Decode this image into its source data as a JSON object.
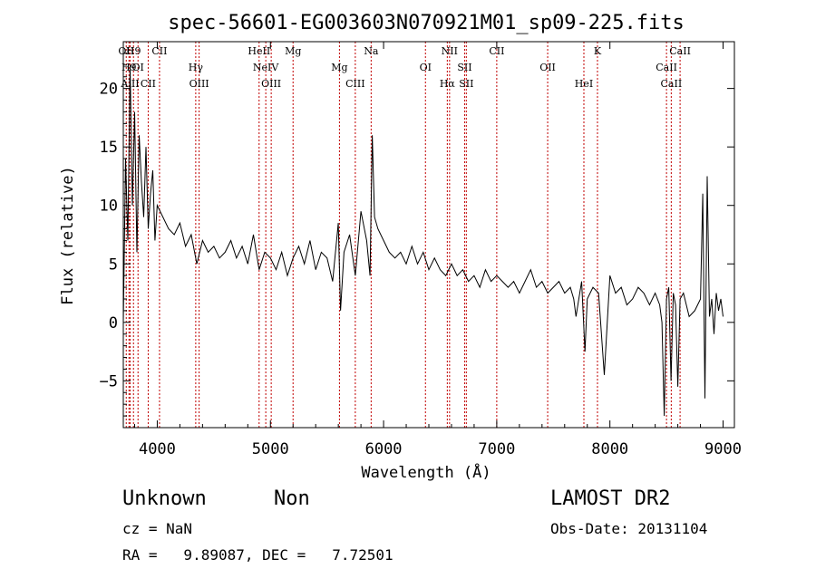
{
  "chart_data": {
    "type": "line",
    "title": "spec-56601-EG003603N070921M01_sp09-225.fits",
    "xlabel": "Wavelength (Å)",
    "ylabel": "Flux (relative)",
    "xlim": [
      3700,
      9100
    ],
    "ylim": [
      -9,
      24
    ],
    "x_ticks": [
      4000,
      5000,
      6000,
      7000,
      8000,
      9000
    ],
    "y_ticks": [
      -5,
      0,
      5,
      10,
      15,
      20
    ],
    "grid": false,
    "series": [
      {
        "x": [
          3700,
          3720,
          3740,
          3760,
          3780,
          3800,
          3820,
          3840,
          3860,
          3880,
          3900,
          3920,
          3940,
          3960,
          3980,
          4000,
          4050,
          4100,
          4150,
          4200,
          4250,
          4300,
          4350,
          4400,
          4450,
          4500,
          4550,
          4600,
          4650,
          4700,
          4750,
          4800,
          4850,
          4900,
          4950,
          5000,
          5050,
          5100,
          5150,
          5200,
          5250,
          5300,
          5350,
          5400,
          5450,
          5500,
          5550,
          5600,
          5620,
          5650,
          5700,
          5750,
          5800,
          5850,
          5880,
          5900,
          5920,
          5950,
          6000,
          6050,
          6100,
          6150,
          6200,
          6250,
          6300,
          6350,
          6400,
          6450,
          6500,
          6550,
          6600,
          6650,
          6700,
          6750,
          6800,
          6850,
          6900,
          6950,
          7000,
          7050,
          7100,
          7150,
          7200,
          7250,
          7300,
          7350,
          7400,
          7450,
          7500,
          7550,
          7600,
          7650,
          7680,
          7700,
          7750,
          7780,
          7800,
          7850,
          7900,
          7950,
          8000,
          8050,
          8100,
          8150,
          8200,
          8250,
          8300,
          8350,
          8400,
          8440,
          8460,
          8480,
          8500,
          8520,
          8540,
          8560,
          8580,
          8600,
          8620,
          8650,
          8700,
          8750,
          8800,
          8820,
          8840,
          8860,
          8880,
          8900,
          8920,
          8940,
          8960,
          8980,
          9000
        ],
        "values": [
          0,
          14,
          7,
          22,
          10,
          18,
          6,
          16,
          12,
          9,
          15,
          8,
          11,
          13,
          7,
          10,
          9,
          8,
          7.5,
          8.5,
          6.5,
          7.5,
          5,
          7,
          6,
          6.5,
          5.5,
          6,
          7,
          5.5,
          6.5,
          5,
          7.5,
          4.5,
          6,
          5.5,
          4.5,
          6,
          4,
          5.5,
          6.5,
          5,
          7,
          4.5,
          6,
          5.5,
          3.5,
          8.5,
          1,
          6,
          7.5,
          4,
          9.5,
          7,
          4,
          16,
          9,
          8,
          7,
          6,
          5.5,
          6,
          5,
          6.5,
          5,
          6,
          4.5,
          5.5,
          4.5,
          4,
          5,
          4,
          4.5,
          3.5,
          4,
          3,
          4.5,
          3.5,
          4,
          3.5,
          3,
          3.5,
          2.5,
          3.5,
          4.5,
          3,
          3.5,
          2.5,
          3,
          3.5,
          2.5,
          3,
          2,
          0.5,
          3.5,
          -2.5,
          2,
          3,
          2.5,
          -4.5,
          4,
          2.5,
          3,
          1.5,
          2,
          3,
          2.5,
          1.5,
          2.5,
          1.5,
          0,
          -8,
          2,
          3,
          -5,
          2.5,
          1.5,
          -5.5,
          2,
          2.5,
          0.5,
          1,
          2,
          11,
          -6.5,
          12.5,
          0.5,
          2,
          -1,
          2.5,
          1,
          2,
          0.5
        ]
      }
    ],
    "lines": [
      {
        "wavelength": 3726,
        "label": "OII"
      },
      {
        "wavelength": 3750,
        "label": "H9"
      },
      {
        "wavelength": 3760,
        "label": "AlII"
      },
      {
        "wavelength": 3790,
        "label": "H9"
      },
      {
        "wavelength": 3830,
        "label": "OI"
      },
      {
        "wavelength": 3920,
        "label": "CII"
      },
      {
        "wavelength": 4020,
        "label": "CII"
      },
      {
        "wavelength": 4340,
        "label": "Hγ"
      },
      {
        "wavelength": 4370,
        "label": "OIII"
      },
      {
        "wavelength": 4900,
        "label": "HeII"
      },
      {
        "wavelength": 4959,
        "label": "NeIV"
      },
      {
        "wavelength": 5007,
        "label": "OIII"
      },
      {
        "wavelength": 5200,
        "label": "Mg"
      },
      {
        "wavelength": 5610,
        "label": "Mg"
      },
      {
        "wavelength": 5750,
        "label": "CIII"
      },
      {
        "wavelength": 5890,
        "label": "Na"
      },
      {
        "wavelength": 6370,
        "label": "OI"
      },
      {
        "wavelength": 6563,
        "label": "Hα"
      },
      {
        "wavelength": 6583,
        "label": "NII"
      },
      {
        "wavelength": 6716,
        "label": "SII"
      },
      {
        "wavelength": 6731,
        "label": "SII"
      },
      {
        "wavelength": 7000,
        "label": "CII"
      },
      {
        "wavelength": 7450,
        "label": "OII"
      },
      {
        "wavelength": 7770,
        "label": "HeI"
      },
      {
        "wavelength": 7890,
        "label": "K"
      },
      {
        "wavelength": 8500,
        "label": "CaII"
      },
      {
        "wavelength": 8542,
        "label": "CaII"
      },
      {
        "wavelength": 8620,
        "label": "CaII"
      }
    ],
    "colors": {
      "spectrum": "#000000",
      "line_markers": "#c00000",
      "axes": "#000000"
    }
  },
  "info": {
    "class_label": "Unknown",
    "subclass_label": "Non",
    "survey": "LAMOST DR2",
    "cz": "cz = NaN",
    "obs_date": "Obs-Date: 20131104",
    "radec": "RA =   9.89087, DEC =   7.72501"
  }
}
